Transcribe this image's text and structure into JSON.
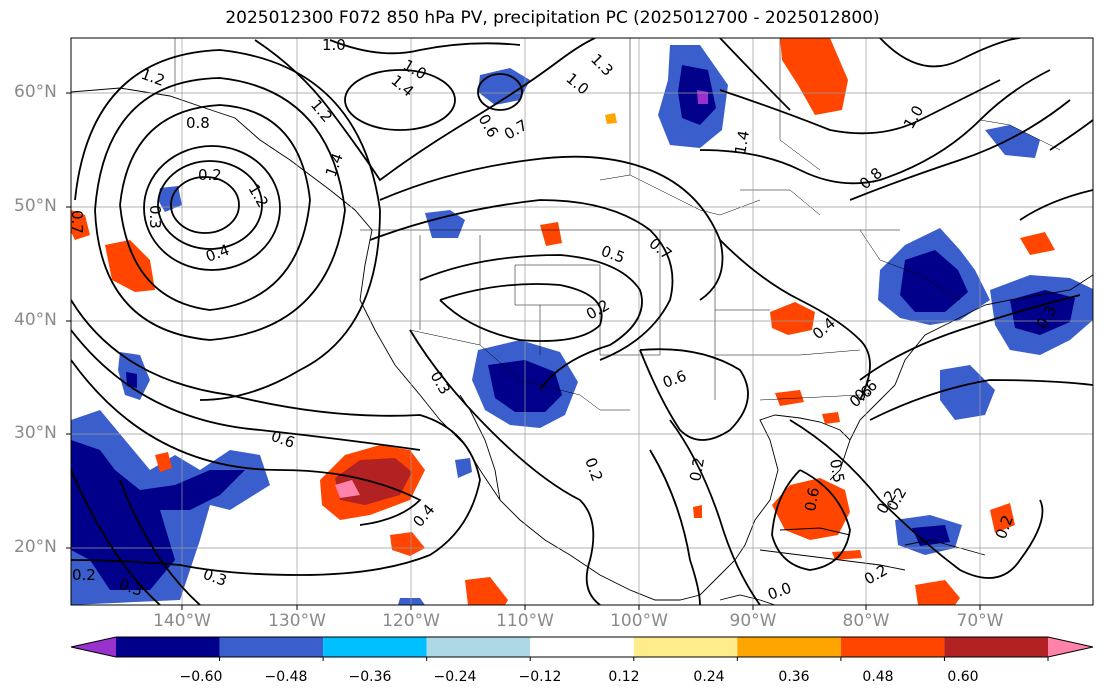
{
  "title": "2025012300 F072 850 hPa PV, precipitation PC (2025012700 - 2025012800)",
  "lat_labels": [
    "60°N",
    "50°N",
    "40°N",
    "30°N",
    "20°N"
  ],
  "lon_labels": [
    "140°W",
    "130°W",
    "120°W",
    "110°W",
    "100°W",
    "90°W",
    "80°W",
    "70°W"
  ],
  "colorbar": {
    "colors": [
      "#9932cc",
      "#00008b",
      "#3a5fcd",
      "#00bfff",
      "#add8e6",
      "#ffffff",
      "#ffec8b",
      "#ffa500",
      "#ff4500",
      "#b22222",
      "#ff82ab"
    ],
    "labels": [
      "−0.60",
      "−0.48",
      "−0.36",
      "−0.24",
      "−0.12",
      "0.12",
      "0.24",
      "0.36",
      "0.48",
      "0.60"
    ]
  },
  "contour_labels": [
    "1.0",
    "1.2",
    "1.4",
    "1.0",
    "1.0",
    "1.2",
    "1.3",
    "0.8",
    "0.6",
    "0.7",
    "1.2",
    "0.2",
    "0.3",
    "1.4",
    "0.4",
    "0.5",
    "0.7",
    "0.2",
    "0.3",
    "0.6",
    "0.6",
    "0.2",
    "0.4",
    "0.3",
    "1.4",
    "0.8",
    "1.0",
    "0.4",
    "0.6",
    "0.3",
    "0.2",
    "0.6",
    "0.2",
    "0.2",
    "0.5",
    "0.2",
    "0.2",
    "0.3",
    "0.0",
    "0.7",
    "0.6",
    "0.2"
  ]
}
